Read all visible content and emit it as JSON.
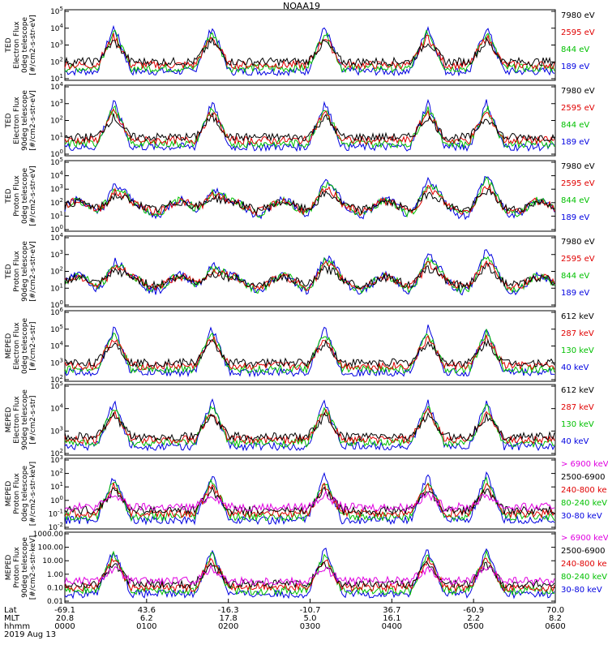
{
  "chart_data": {
    "type": "line",
    "title": "NOAA19",
    "date": "2019 Aug 13",
    "x_axis": {
      "row_labels": [
        "Lat",
        "MLT",
        "hhmm"
      ],
      "ticks": [
        {
          "lat": "-69.1",
          "mlt": "20.8",
          "hhmm": "0000"
        },
        {
          "lat": "43.6",
          "mlt": "6.2",
          "hhmm": "0100"
        },
        {
          "lat": "-16.3",
          "mlt": "17.8",
          "hhmm": "0200"
        },
        {
          "lat": "-10.7",
          "mlt": "5.0",
          "hhmm": "0300"
        },
        {
          "lat": "36.7",
          "mlt": "16.1",
          "hhmm": "0400"
        },
        {
          "lat": "-60.9",
          "mlt": "2.2",
          "hhmm": "0500"
        },
        {
          "lat": "70.0",
          "mlt": "8.2",
          "hhmm": "0600"
        }
      ]
    },
    "panels": [
      {
        "ylabel": [
          "TED",
          "Electron Flux",
          "0deg telescope",
          "[#/cm2-s-str-eV]"
        ],
        "yticks": [
          "10^1",
          "10^2",
          "10^3",
          "10^4",
          "10^5"
        ],
        "legend": [
          {
            "text": "7980 eV",
            "color": "#000000"
          },
          {
            "text": "2595 eV",
            "color": "#e00000"
          },
          {
            "text": "844 eV",
            "color": "#00c000"
          },
          {
            "text": "189 eV",
            "color": "#0000e0"
          }
        ]
      },
      {
        "ylabel": [
          "TED",
          "Electron Flux",
          "90deg telescope",
          "[#/cm2-s-str-eV]"
        ],
        "yticks": [
          "10^0",
          "10^1",
          "10^2",
          "10^3",
          "10^4"
        ],
        "legend": [
          {
            "text": "7980 eV",
            "color": "#000000"
          },
          {
            "text": "2595 eV",
            "color": "#e00000"
          },
          {
            "text": "844 eV",
            "color": "#00c000"
          },
          {
            "text": "189 eV",
            "color": "#0000e0"
          }
        ]
      },
      {
        "ylabel": [
          "TED",
          "Proton Flux",
          "0deg telescope",
          "[#/cm2-s-str-eV]"
        ],
        "yticks": [
          "10^0",
          "10^1",
          "10^2",
          "10^3",
          "10^4",
          "10^5"
        ],
        "legend": [
          {
            "text": "7980 eV",
            "color": "#000000"
          },
          {
            "text": "2595 eV",
            "color": "#e00000"
          },
          {
            "text": "844 eV",
            "color": "#00c000"
          },
          {
            "text": "189 eV",
            "color": "#0000e0"
          }
        ]
      },
      {
        "ylabel": [
          "TED",
          "Proton Flux",
          "90deg telescope",
          "[#/cm2-s-str-eV]"
        ],
        "yticks": [
          "10^0",
          "10^1",
          "10^2",
          "10^3",
          "10^4"
        ],
        "legend": [
          {
            "text": "7980 eV",
            "color": "#000000"
          },
          {
            "text": "2595 eV",
            "color": "#e00000"
          },
          {
            "text": "844 eV",
            "color": "#00c000"
          },
          {
            "text": "189 eV",
            "color": "#0000e0"
          }
        ]
      },
      {
        "ylabel": [
          "MEPED",
          "Electron Flux",
          "0deg telescope",
          "[#/cm2-s-str]"
        ],
        "yticks": [
          "10^2",
          "10^3",
          "10^4",
          "10^5",
          "10^6"
        ],
        "legend": [
          {
            "text": "612 keV",
            "color": "#000000"
          },
          {
            "text": "287 keV",
            "color": "#e00000"
          },
          {
            "text": "130 keV",
            "color": "#00c000"
          },
          {
            "text": "40 keV",
            "color": "#0000e0"
          }
        ]
      },
      {
        "ylabel": [
          "MEPED",
          "Electron Flux",
          "90deg telescope",
          "[#/cm2-s-str]"
        ],
        "yticks": [
          "10^2",
          "10^3",
          "10^4",
          "10^5"
        ],
        "legend": [
          {
            "text": "612 keV",
            "color": "#000000"
          },
          {
            "text": "287 keV",
            "color": "#e00000"
          },
          {
            "text": "130 keV",
            "color": "#00c000"
          },
          {
            "text": "40 keV",
            "color": "#0000e0"
          }
        ]
      },
      {
        "ylabel": [
          "MEPED",
          "Proton Flux",
          "0deg telescope",
          "[#/cm2-s-str-keV]"
        ],
        "yticks": [
          "10^-2",
          "10^-1",
          "10^0",
          "10^1",
          "10^2",
          "10^3"
        ],
        "legend": [
          {
            "text": "> 6900 keV",
            "color": "#e000e0"
          },
          {
            "text": "2500-6900",
            "color": "#000000"
          },
          {
            "text": "240-800 ke",
            "color": "#e00000"
          },
          {
            "text": "80-240 keV",
            "color": "#00c000"
          },
          {
            "text": "30-80 keV",
            "color": "#0000e0"
          }
        ]
      },
      {
        "ylabel": [
          "MEPED",
          "Proton Flux",
          "90deg telescope",
          "[#/cm2-s-str-keV]"
        ],
        "yticks": [
          "0.01",
          "0.10",
          "1.00",
          "10.00",
          "100.00",
          "1000.00"
        ],
        "legend": [
          {
            "text": "> 6900 keV",
            "color": "#e000e0"
          },
          {
            "text": "2500-6900",
            "color": "#000000"
          },
          {
            "text": "240-800 ke",
            "color": "#e00000"
          },
          {
            "text": "80-240 keV",
            "color": "#00c000"
          },
          {
            "text": "30-80 keV",
            "color": "#0000e0"
          }
        ]
      }
    ],
    "passes": [
      0.1,
      0.3,
      0.53,
      0.74,
      0.86
    ]
  }
}
